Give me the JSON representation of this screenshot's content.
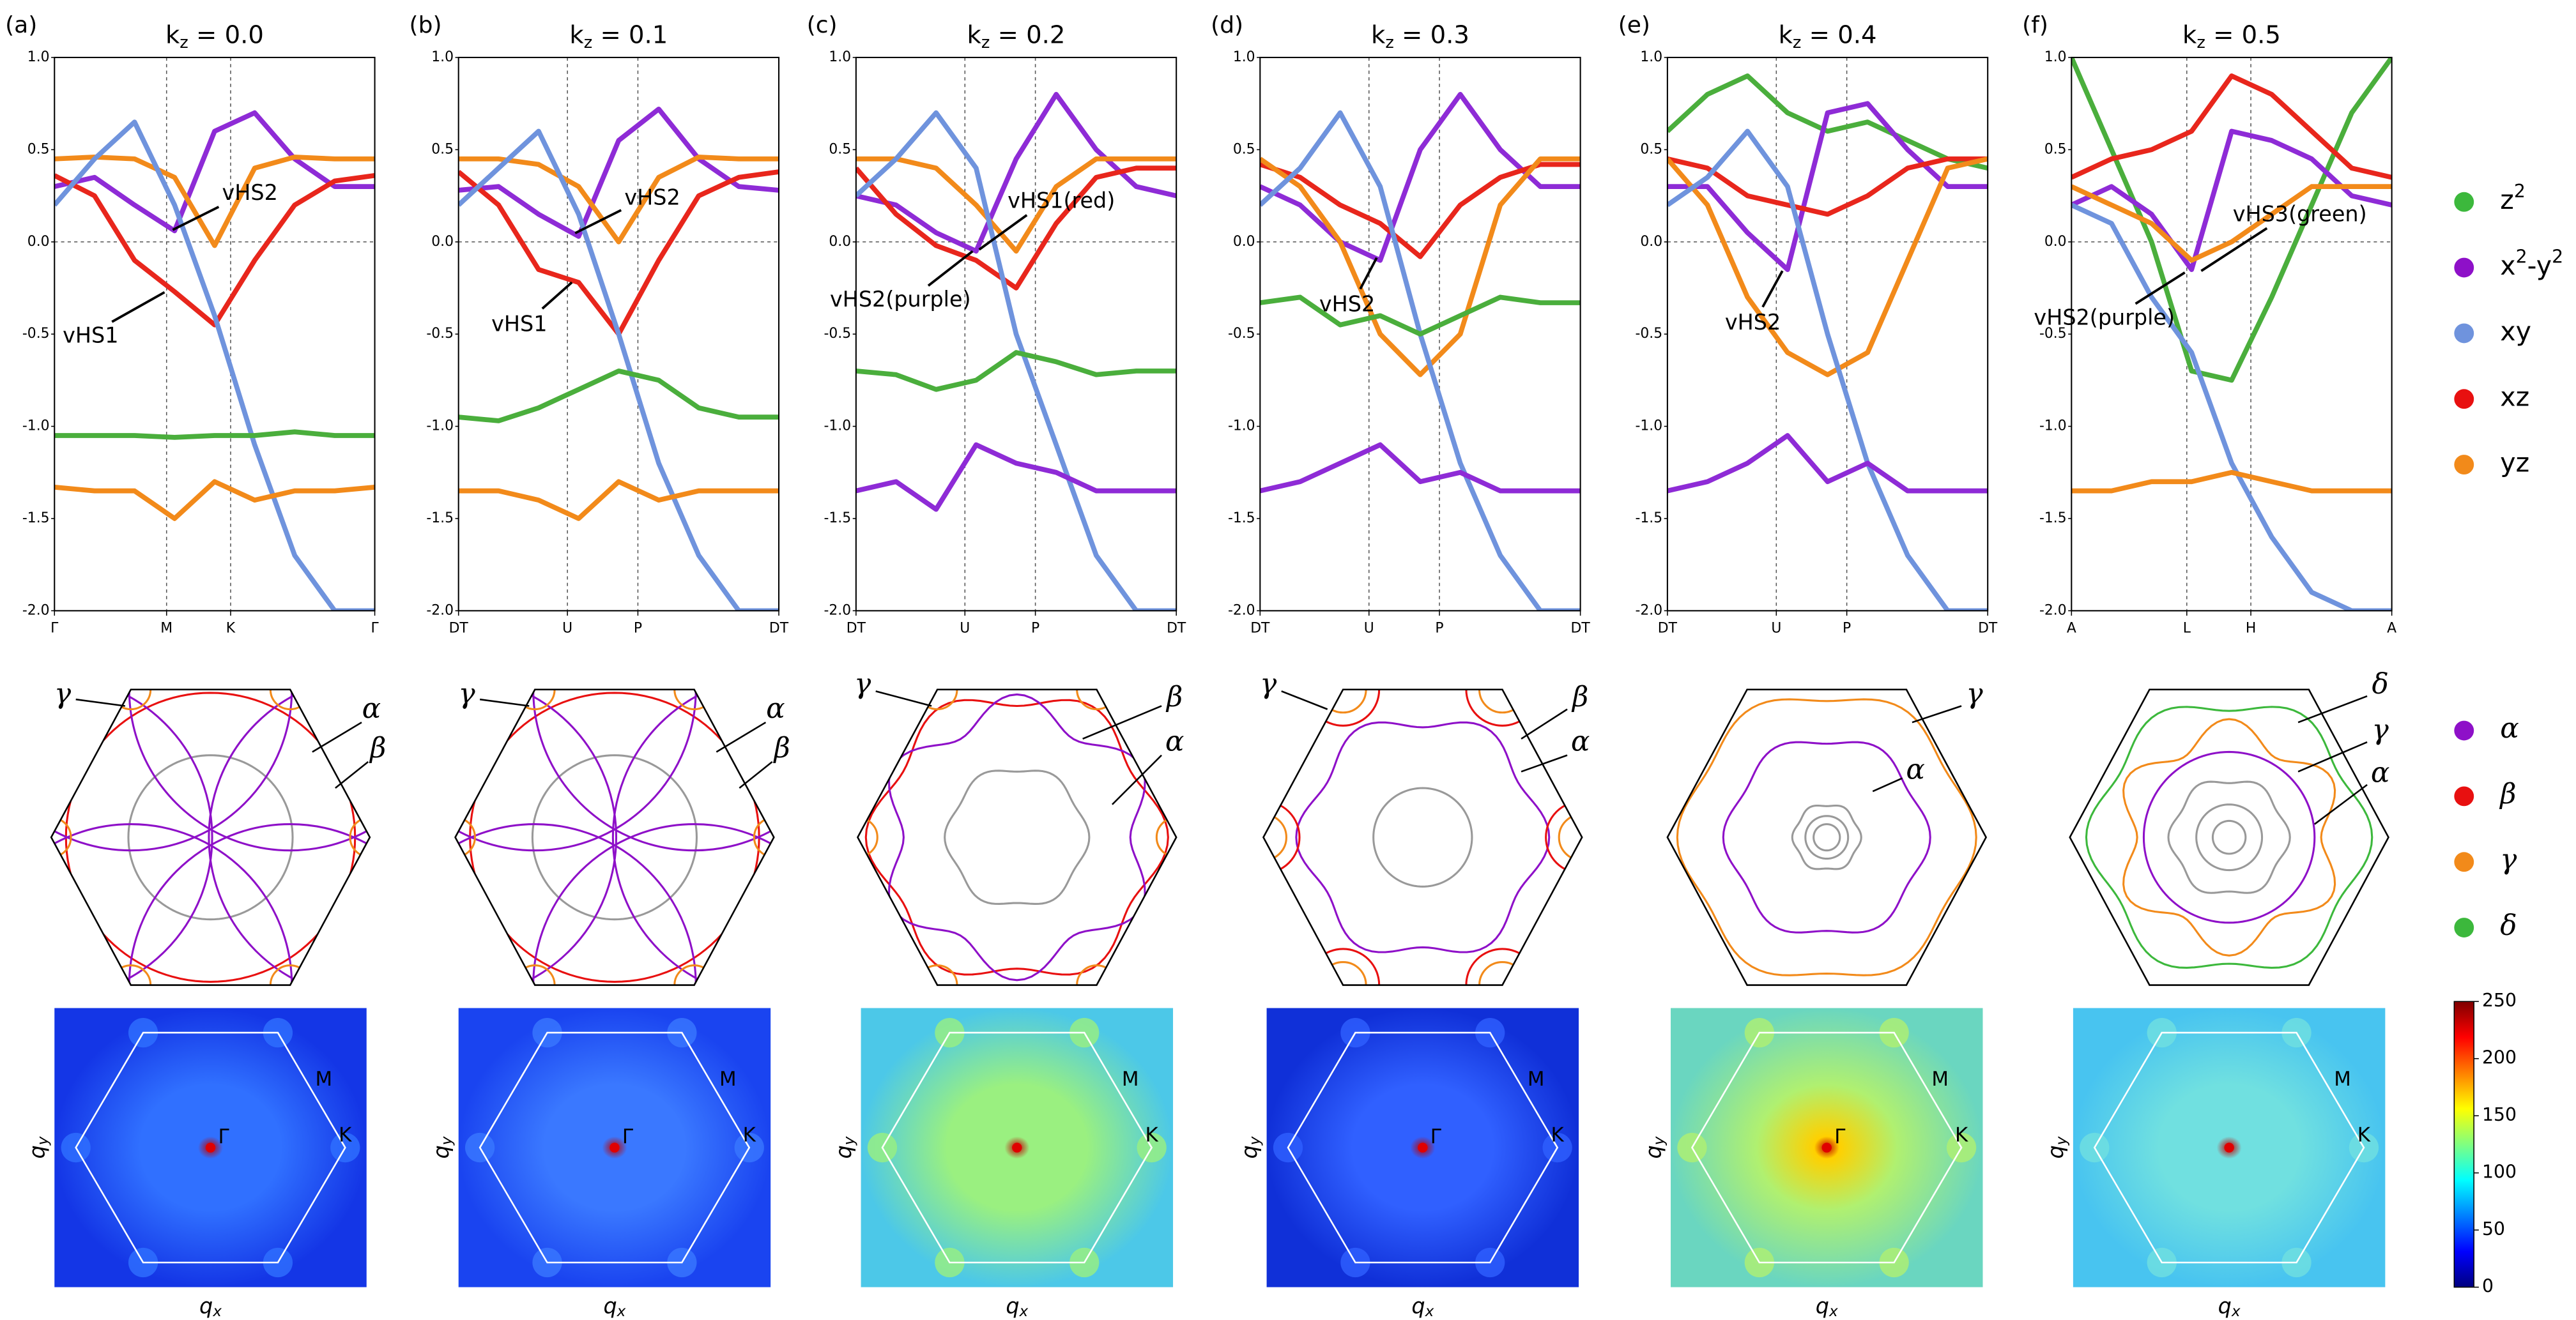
{
  "chart_data": [
    {
      "type": "line",
      "label": "(a)",
      "title": "k",
      "title_subscript": "z",
      "title_rest": " = 0.0",
      "xlim": [
        0,
        1
      ],
      "xticks": [
        {
          "value": 0,
          "label": "Γ"
        },
        {
          "value": 0.35,
          "label": "M"
        },
        {
          "value": 0.55,
          "label": "K"
        },
        {
          "value": 1,
          "label": "Γ"
        }
      ],
      "ylim": [
        -2,
        1
      ],
      "yticks": [
        {
          "value": 1,
          "label": "1.0"
        },
        0.5,
        {
          "value": 0,
          "label": "0.0"
        },
        -0.5,
        {
          "value": -1,
          "label": "-1.0"
        },
        -1.5,
        {
          "value": -2,
          "label": "-2.0"
        }
      ],
      "annotations": [
        "vHS2",
        "vHS1"
      ],
      "x": [
        0,
        0.125,
        0.25,
        0.375,
        0.5,
        0.625,
        0.75,
        0.875,
        1
      ],
      "series": [
        {
          "color": "#8e2bd6",
          "values": [
            0.3,
            0.35,
            0.2,
            0.06,
            0.6,
            0.7,
            0.45,
            0.3,
            0.3
          ]
        },
        {
          "color": "#e8261c",
          "values": [
            0.36,
            0.25,
            -0.1,
            -0.27,
            -0.45,
            -0.1,
            0.2,
            0.33,
            0.36
          ]
        },
        {
          "color": "#f28a1a",
          "values": [
            0.45,
            0.46,
            0.45,
            0.35,
            -0.02,
            0.4,
            0.46,
            0.45,
            0.45
          ]
        },
        {
          "color": "#6f93dd",
          "values": [
            0.2,
            0.45,
            0.65,
            0.2,
            -0.4,
            -1.1,
            -1.7,
            -2,
            -2
          ]
        },
        {
          "color": "#4aae3c",
          "values": [
            -1.05,
            -1.05,
            -1.05,
            -1.06,
            -1.05,
            -1.05,
            -1.03,
            -1.05,
            -1.05
          ]
        },
        {
          "color": "#f28a1a",
          "values": [
            -1.33,
            -1.35,
            -1.35,
            -1.5,
            -1.3,
            -1.4,
            -1.35,
            -1.35,
            -1.33
          ]
        }
      ]
    },
    {
      "type": "line",
      "label": "(b)",
      "title": "k",
      "title_subscript": "z",
      "title_rest": " = 0.1",
      "xlim": [
        0,
        1
      ],
      "xticks": [
        {
          "value": 0,
          "label": "DT"
        },
        {
          "value": 0.34,
          "label": "U"
        },
        {
          "value": 0.56,
          "label": "P"
        },
        {
          "value": 1,
          "label": "DT"
        }
      ],
      "ylim": [
        -2,
        1
      ],
      "yticks": [
        {
          "value": 1,
          "label": "1.0"
        },
        0.5,
        {
          "value": 0,
          "label": "0.0"
        },
        -0.5,
        {
          "value": -1,
          "label": "-1.0"
        },
        -1.5,
        {
          "value": -2,
          "label": "-2.0"
        }
      ],
      "annotations": [
        "vHS2",
        "vHS1"
      ],
      "x": [
        0,
        0.125,
        0.25,
        0.375,
        0.5,
        0.625,
        0.75,
        0.875,
        1
      ],
      "series": [
        {
          "color": "#8e2bd6",
          "values": [
            0.28,
            0.3,
            0.15,
            0.03,
            0.55,
            0.72,
            0.45,
            0.3,
            0.28
          ]
        },
        {
          "color": "#e8261c",
          "values": [
            0.38,
            0.2,
            -0.15,
            -0.22,
            -0.5,
            -0.1,
            0.25,
            0.35,
            0.38
          ]
        },
        {
          "color": "#f28a1a",
          "values": [
            0.45,
            0.45,
            0.42,
            0.3,
            0.0,
            0.35,
            0.46,
            0.45,
            0.45
          ]
        },
        {
          "color": "#6f93dd",
          "values": [
            0.2,
            0.4,
            0.6,
            0.15,
            -0.5,
            -1.2,
            -1.7,
            -2,
            -2
          ]
        },
        {
          "color": "#4aae3c",
          "values": [
            -0.95,
            -0.97,
            -0.9,
            -0.8,
            -0.7,
            -0.75,
            -0.9,
            -0.95,
            -0.95
          ]
        },
        {
          "color": "#f28a1a",
          "values": [
            -1.35,
            -1.35,
            -1.4,
            -1.5,
            -1.3,
            -1.4,
            -1.35,
            -1.35,
            -1.35
          ]
        }
      ]
    },
    {
      "type": "line",
      "label": "(c)",
      "title": "k",
      "title_subscript": "z",
      "title_rest": " = 0.2",
      "xlim": [
        0,
        1
      ],
      "xticks": [
        {
          "value": 0,
          "label": "DT"
        },
        {
          "value": 0.34,
          "label": "U"
        },
        {
          "value": 0.56,
          "label": "P"
        },
        {
          "value": 1,
          "label": "DT"
        }
      ],
      "ylim": [
        -2,
        1
      ],
      "yticks": [
        {
          "value": 1,
          "label": "1.0"
        },
        0.5,
        {
          "value": 0,
          "label": "0.0"
        },
        -0.5,
        {
          "value": -1,
          "label": "-1.0"
        },
        -1.5,
        {
          "value": -2,
          "label": "-2.0"
        }
      ],
      "annotations": [
        "vHS1(red)",
        "vHS2(purple)"
      ],
      "x": [
        0,
        0.125,
        0.25,
        0.375,
        0.5,
        0.625,
        0.75,
        0.875,
        1
      ],
      "series": [
        {
          "color": "#8e2bd6",
          "values": [
            0.25,
            0.2,
            0.05,
            -0.05,
            0.45,
            0.8,
            0.5,
            0.3,
            0.25
          ]
        },
        {
          "color": "#e8261c",
          "values": [
            0.4,
            0.15,
            -0.02,
            -0.1,
            -0.25,
            0.1,
            0.35,
            0.4,
            0.4
          ]
        },
        {
          "color": "#f28a1a",
          "values": [
            0.45,
            0.45,
            0.4,
            0.2,
            -0.05,
            0.3,
            0.45,
            0.45,
            0.45
          ]
        },
        {
          "color": "#6f93dd",
          "values": [
            0.25,
            0.45,
            0.7,
            0.4,
            -0.5,
            -1.1,
            -1.7,
            -2,
            -2
          ]
        },
        {
          "color": "#4aae3c",
          "values": [
            -0.7,
            -0.72,
            -0.8,
            -0.75,
            -0.6,
            -0.65,
            -0.72,
            -0.7,
            -0.7
          ]
        },
        {
          "color": "#8e2bd6",
          "values": [
            -1.35,
            -1.3,
            -1.45,
            -1.1,
            -1.2,
            -1.25,
            -1.35,
            -1.35,
            -1.35
          ]
        }
      ]
    },
    {
      "type": "line",
      "label": "(d)",
      "title": "k",
      "title_subscript": "z",
      "title_rest": " = 0.3",
      "xlim": [
        0,
        1
      ],
      "xticks": [
        {
          "value": 0,
          "label": "DT"
        },
        {
          "value": 0.34,
          "label": "U"
        },
        {
          "value": 0.56,
          "label": "P"
        },
        {
          "value": 1,
          "label": "DT"
        }
      ],
      "ylim": [
        -2,
        1
      ],
      "yticks": [
        {
          "value": 1,
          "label": "1.0"
        },
        0.5,
        {
          "value": 0,
          "label": "0.0"
        },
        -0.5,
        {
          "value": -1,
          "label": "-1.0"
        },
        -1.5,
        {
          "value": -2,
          "label": "-2.0"
        }
      ],
      "annotations": [
        "vHS2"
      ],
      "x": [
        0,
        0.125,
        0.25,
        0.375,
        0.5,
        0.625,
        0.75,
        0.875,
        1
      ],
      "series": [
        {
          "color": "#8e2bd6",
          "values": [
            0.3,
            0.2,
            0.0,
            -0.1,
            0.5,
            0.8,
            0.5,
            0.3,
            0.3
          ]
        },
        {
          "color": "#e8261c",
          "values": [
            0.42,
            0.35,
            0.2,
            0.1,
            -0.08,
            0.2,
            0.35,
            0.42,
            0.42
          ]
        },
        {
          "color": "#f28a1a",
          "values": [
            0.45,
            0.3,
            0.0,
            -0.5,
            -0.72,
            -0.5,
            0.2,
            0.45,
            0.45
          ]
        },
        {
          "color": "#6f93dd",
          "values": [
            0.2,
            0.4,
            0.7,
            0.3,
            -0.5,
            -1.2,
            -1.7,
            -2,
            -2
          ]
        },
        {
          "color": "#4aae3c",
          "values": [
            -0.33,
            -0.3,
            -0.45,
            -0.4,
            -0.5,
            -0.4,
            -0.3,
            -0.33,
            -0.33
          ]
        },
        {
          "color": "#8e2bd6",
          "values": [
            -1.35,
            -1.3,
            -1.2,
            -1.1,
            -1.3,
            -1.25,
            -1.35,
            -1.35,
            -1.35
          ]
        }
      ]
    },
    {
      "type": "line",
      "label": "(e)",
      "title": "k",
      "title_subscript": "z",
      "title_rest": " = 0.4",
      "xlim": [
        0,
        1
      ],
      "xticks": [
        {
          "value": 0,
          "label": "DT"
        },
        {
          "value": 0.34,
          "label": "U"
        },
        {
          "value": 0.56,
          "label": "P"
        },
        {
          "value": 1,
          "label": "DT"
        }
      ],
      "ylim": [
        -2,
        1
      ],
      "yticks": [
        {
          "value": 1,
          "label": "1.0"
        },
        0.5,
        {
          "value": 0,
          "label": "0.0"
        },
        -0.5,
        {
          "value": -1,
          "label": "-1.0"
        },
        -1.5,
        {
          "value": -2,
          "label": "-2.0"
        }
      ],
      "annotations": [
        "vHS2"
      ],
      "x": [
        0,
        0.125,
        0.25,
        0.375,
        0.5,
        0.625,
        0.75,
        0.875,
        1
      ],
      "series": [
        {
          "color": "#4aae3c",
          "values": [
            0.6,
            0.8,
            0.9,
            0.7,
            0.6,
            0.65,
            0.55,
            0.45,
            0.4
          ]
        },
        {
          "color": "#8e2bd6",
          "values": [
            0.3,
            0.3,
            0.05,
            -0.15,
            0.7,
            0.75,
            0.5,
            0.3,
            0.3
          ]
        },
        {
          "color": "#e8261c",
          "values": [
            0.45,
            0.4,
            0.25,
            0.2,
            0.15,
            0.25,
            0.4,
            0.45,
            0.45
          ]
        },
        {
          "color": "#f28a1a",
          "values": [
            0.45,
            0.2,
            -0.3,
            -0.6,
            -0.72,
            -0.6,
            -0.1,
            0.4,
            0.45
          ]
        },
        {
          "color": "#6f93dd",
          "values": [
            0.2,
            0.35,
            0.6,
            0.3,
            -0.5,
            -1.2,
            -1.7,
            -2,
            -2
          ]
        },
        {
          "color": "#8e2bd6",
          "values": [
            -1.35,
            -1.3,
            -1.2,
            -1.05,
            -1.3,
            -1.2,
            -1.35,
            -1.35,
            -1.35
          ]
        }
      ]
    },
    {
      "type": "line",
      "label": "(f)",
      "title": "k",
      "title_subscript": "z",
      "title_rest": " = 0.5",
      "xlim": [
        0,
        1
      ],
      "xticks": [
        {
          "value": 0,
          "label": "A"
        },
        {
          "value": 0.36,
          "label": "L"
        },
        {
          "value": 0.56,
          "label": "H"
        },
        {
          "value": 1,
          "label": "A"
        }
      ],
      "ylim": [
        -2,
        1
      ],
      "yticks": [
        {
          "value": 1,
          "label": "1.0"
        },
        0.5,
        {
          "value": 0,
          "label": "0.0"
        },
        -0.5,
        {
          "value": -1,
          "label": "-1.0"
        },
        -1.5,
        {
          "value": -2,
          "label": "-2.0"
        }
      ],
      "annotations": [
        "vHS3(green)",
        "vHS2(purple)"
      ],
      "x": [
        0,
        0.125,
        0.25,
        0.375,
        0.5,
        0.625,
        0.75,
        0.875,
        1
      ],
      "series": [
        {
          "color": "#4aae3c",
          "values": [
            1.0,
            0.5,
            0.0,
            -0.7,
            -0.75,
            -0.3,
            0.2,
            0.7,
            1.0
          ]
        },
        {
          "color": "#8e2bd6",
          "values": [
            0.2,
            0.3,
            0.15,
            -0.15,
            0.6,
            0.55,
            0.45,
            0.25,
            0.2
          ]
        },
        {
          "color": "#e8261c",
          "values": [
            0.35,
            0.45,
            0.5,
            0.6,
            0.9,
            0.8,
            0.6,
            0.4,
            0.35
          ]
        },
        {
          "color": "#f28a1a",
          "values": [
            0.3,
            0.2,
            0.1,
            -0.1,
            0.0,
            0.15,
            0.3,
            0.3,
            0.3
          ]
        },
        {
          "color": "#6f93dd",
          "values": [
            0.2,
            0.1,
            -0.3,
            -0.6,
            -1.2,
            -1.6,
            -1.9,
            -2,
            -2
          ]
        },
        {
          "color": "#f28a1a",
          "values": [
            -1.35,
            -1.35,
            -1.3,
            -1.3,
            -1.25,
            -1.3,
            -1.35,
            -1.35,
            -1.35
          ]
        }
      ]
    },
    {
      "type": "colorbar",
      "ylim": [
        0,
        250
      ],
      "yticks": [
        0,
        50,
        100,
        150,
        200,
        250
      ],
      "colors": [
        "#00007f",
        "#0000ff",
        "#0080ff",
        "#00ffff",
        "#80ff80",
        "#ffff00",
        "#ff8000",
        "#ff0000",
        "#7f0000"
      ]
    }
  ],
  "orbital_legend": [
    {
      "name": "z",
      "sup": "2",
      "color": "#3cb83c"
    },
    {
      "name": "x",
      "sup": "2",
      "rest": "-y",
      "sup2": "2",
      "color": "#8e10c8"
    },
    {
      "name": "xy",
      "color": "#6f93dd"
    },
    {
      "name": "xz",
      "color": "#e81010"
    },
    {
      "name": "yz",
      "color": "#f28a1a"
    }
  ],
  "fs_legend": [
    {
      "name": "α",
      "color": "#8e10c8"
    },
    {
      "name": "β",
      "color": "#e81010"
    },
    {
      "name": "γ",
      "color": "#f28a1a"
    },
    {
      "name": "δ",
      "color": "#3cb83c"
    }
  ],
  "fermi_surfaces": [
    {
      "labels": [
        "γ",
        "α",
        "β"
      ]
    },
    {
      "labels": [
        "γ",
        "α",
        "β"
      ]
    },
    {
      "labels": [
        "γ",
        "β",
        "α"
      ]
    },
    {
      "labels": [
        "γ",
        "β",
        "α"
      ]
    },
    {
      "labels": [
        "γ",
        "α"
      ]
    },
    {
      "labels": [
        "δ",
        "γ",
        "α"
      ]
    }
  ],
  "qpi": [
    {
      "points": [
        "M",
        "K",
        "Γ"
      ],
      "xlabel": "q",
      "xlabel_sub": "x",
      "ylabel": "q",
      "ylabel_sub": "y"
    },
    {
      "points": [
        "M",
        "K",
        "Γ"
      ],
      "xlabel": "q",
      "xlabel_sub": "x",
      "ylabel": "q",
      "ylabel_sub": "y"
    },
    {
      "points": [
        "M",
        "K"
      ],
      "xlabel": "q",
      "xlabel_sub": "x",
      "ylabel": "q",
      "ylabel_sub": "y"
    },
    {
      "points": [
        "M",
        "K",
        "Γ"
      ],
      "xlabel": "q",
      "xlabel_sub": "x",
      "ylabel": "q",
      "ylabel_sub": "y"
    },
    {
      "points": [
        "M",
        "K",
        "Γ"
      ],
      "xlabel": "q",
      "xlabel_sub": "x",
      "ylabel": "q",
      "ylabel_sub": "y"
    },
    {
      "points": [
        "M",
        "K"
      ],
      "xlabel": "q",
      "xlabel_sub": "x",
      "ylabel": "q",
      "ylabel_sub": "y"
    }
  ]
}
